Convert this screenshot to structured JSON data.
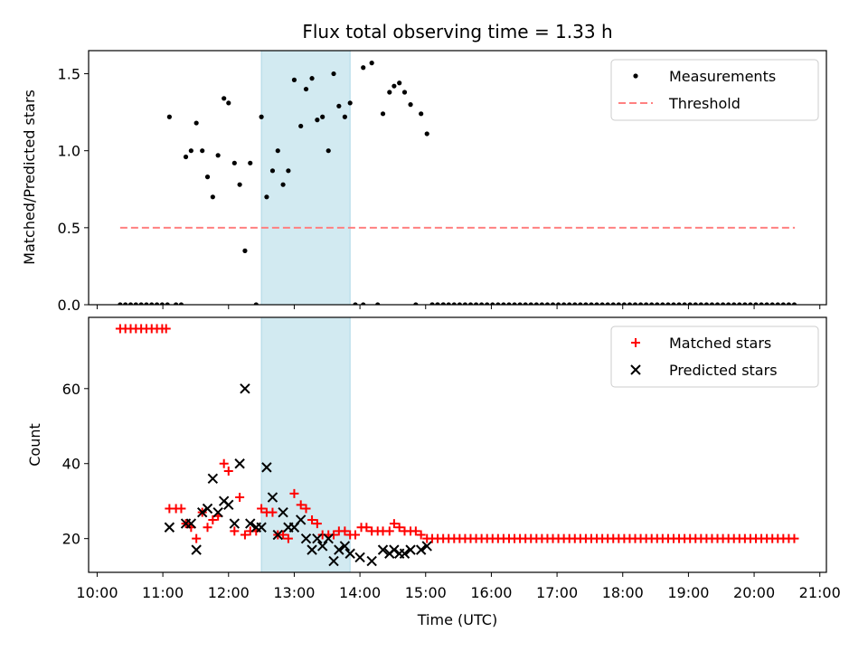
{
  "chart_data": [
    {
      "type": "scatter",
      "title": "Flux total observing time = 1.33 h",
      "xlabel": "",
      "ylabel": "Matched/Predicted stars",
      "ylim": [
        0,
        1.65
      ],
      "yticks": [
        "0.0",
        "0.5",
        "1.0",
        "1.5"
      ],
      "shaded_interval": {
        "start": 12.5,
        "end": 13.85,
        "color": "#add8e6"
      },
      "legend": {
        "position": "upper right",
        "entries": [
          "Measurements",
          "Threshold"
        ]
      },
      "series": [
        {
          "name": "Measurements",
          "color": "#000000",
          "points": [
            [
              10.35,
              0
            ],
            [
              10.43,
              0
            ],
            [
              10.51,
              0
            ],
            [
              10.59,
              0
            ],
            [
              10.67,
              0
            ],
            [
              10.75,
              0
            ],
            [
              10.83,
              0
            ],
            [
              10.91,
              0
            ],
            [
              10.99,
              0
            ],
            [
              11.07,
              0
            ],
            [
              11.1,
              1.22
            ],
            [
              11.2,
              0
            ],
            [
              11.28,
              0
            ],
            [
              11.35,
              0.96
            ],
            [
              11.43,
              1.0
            ],
            [
              11.51,
              1.18
            ],
            [
              11.6,
              1.0
            ],
            [
              11.68,
              0.83
            ],
            [
              11.76,
              0.7
            ],
            [
              11.84,
              0.97
            ],
            [
              11.93,
              1.34
            ],
            [
              12.0,
              1.31
            ],
            [
              12.09,
              0.92
            ],
            [
              12.17,
              0.78
            ],
            [
              12.25,
              0.35
            ],
            [
              12.33,
              0.92
            ],
            [
              12.42,
              0
            ],
            [
              12.5,
              1.22
            ],
            [
              12.58,
              0.7
            ],
            [
              12.67,
              0.87
            ],
            [
              12.75,
              1.0
            ],
            [
              12.83,
              0.78
            ],
            [
              12.91,
              0.87
            ],
            [
              13.0,
              1.46
            ],
            [
              13.1,
              1.16
            ],
            [
              13.18,
              1.4
            ],
            [
              13.27,
              1.47
            ],
            [
              13.35,
              1.2
            ],
            [
              13.43,
              1.22
            ],
            [
              13.52,
              1.0
            ],
            [
              13.6,
              1.5
            ],
            [
              13.68,
              1.29
            ],
            [
              13.77,
              1.22
            ],
            [
              13.85,
              1.31
            ],
            [
              13.93,
              0
            ],
            [
              14.05,
              0
            ],
            [
              14.18,
              1.57
            ],
            [
              14.27,
              0
            ],
            [
              14.35,
              1.24
            ],
            [
              14.45,
              1.38
            ],
            [
              14.52,
              1.42
            ],
            [
              14.6,
              1.44
            ],
            [
              14.68,
              1.38
            ],
            [
              14.77,
              1.3
            ],
            [
              14.85,
              0
            ],
            [
              14.93,
              1.24
            ],
            [
              15.02,
              1.11
            ],
            [
              15.1,
              0
            ],
            [
              15.18,
              0
            ],
            [
              15.27,
              0
            ],
            [
              14.05,
              1.54
            ]
          ],
          "zero_run": {
            "start": 15.1,
            "end": 20.62,
            "step": 0.0835,
            "value": 0
          }
        },
        {
          "name": "Threshold",
          "color": "#ff8080",
          "x": [
            10.35,
            20.62
          ],
          "y": [
            0.5,
            0.5
          ]
        }
      ]
    },
    {
      "type": "scatter",
      "title": "",
      "xlabel": "Time (UTC)",
      "ylabel": "Count",
      "ylim": [
        11,
        79
      ],
      "yticks": [
        "20",
        "40",
        "60"
      ],
      "xticks": [
        "10:00",
        "11:00",
        "12:00",
        "13:00",
        "14:00",
        "15:00",
        "16:00",
        "17:00",
        "18:00",
        "19:00",
        "20:00",
        "21:00"
      ],
      "shaded_interval": {
        "start": 12.5,
        "end": 13.85,
        "color": "#add8e6"
      },
      "legend": {
        "position": "upper right",
        "entries": [
          "Matched stars",
          "Predicted stars"
        ]
      },
      "series": [
        {
          "name": "Matched stars",
          "color": "#ff0000",
          "marker": "+",
          "points": [
            [
              10.35,
              76
            ],
            [
              10.43,
              76
            ],
            [
              10.51,
              76
            ],
            [
              10.59,
              76
            ],
            [
              10.67,
              76
            ],
            [
              10.75,
              76
            ],
            [
              10.83,
              76
            ],
            [
              10.91,
              76
            ],
            [
              10.99,
              76
            ],
            [
              11.05,
              76
            ],
            [
              11.1,
              28
            ],
            [
              11.2,
              28
            ],
            [
              11.28,
              28
            ],
            [
              11.35,
              24
            ],
            [
              11.43,
              23
            ],
            [
              11.51,
              20
            ],
            [
              11.6,
              27
            ],
            [
              11.68,
              23
            ],
            [
              11.76,
              25
            ],
            [
              11.84,
              26
            ],
            [
              11.93,
              40
            ],
            [
              12.0,
              38
            ],
            [
              12.09,
              22
            ],
            [
              12.17,
              31
            ],
            [
              12.25,
              21
            ],
            [
              12.33,
              22
            ],
            [
              12.42,
              22
            ],
            [
              12.5,
              28
            ],
            [
              12.58,
              27
            ],
            [
              12.67,
              27
            ],
            [
              12.75,
              21
            ],
            [
              12.83,
              21
            ],
            [
              12.91,
              20
            ],
            [
              13.0,
              32
            ],
            [
              13.1,
              29
            ],
            [
              13.18,
              28
            ],
            [
              13.27,
              25
            ],
            [
              13.35,
              24
            ],
            [
              13.43,
              21
            ],
            [
              13.52,
              21
            ],
            [
              13.6,
              21
            ],
            [
              13.68,
              22
            ],
            [
              13.77,
              22
            ],
            [
              13.85,
              21
            ],
            [
              13.93,
              21
            ],
            [
              14.02,
              23
            ],
            [
              14.1,
              23
            ],
            [
              14.18,
              22
            ],
            [
              14.27,
              22
            ],
            [
              14.35,
              22
            ],
            [
              14.45,
              22
            ],
            [
              14.52,
              24
            ],
            [
              14.6,
              23
            ],
            [
              14.68,
              22
            ],
            [
              14.77,
              22
            ],
            [
              14.85,
              22
            ],
            [
              14.93,
              21
            ],
            [
              15.02,
              20
            ]
          ],
          "constant_run": {
            "start": 15.1,
            "end": 20.62,
            "step": 0.0835,
            "value": 20
          }
        },
        {
          "name": "Predicted stars",
          "color": "#000000",
          "marker": "x",
          "points": [
            [
              11.1,
              23
            ],
            [
              11.35,
              24
            ],
            [
              11.43,
              24
            ],
            [
              11.51,
              17
            ],
            [
              11.6,
              27
            ],
            [
              11.68,
              28
            ],
            [
              11.76,
              36
            ],
            [
              11.84,
              27
            ],
            [
              11.93,
              30
            ],
            [
              12.0,
              29
            ],
            [
              12.09,
              24
            ],
            [
              12.17,
              40
            ],
            [
              12.25,
              60
            ],
            [
              12.33,
              24
            ],
            [
              12.42,
              23
            ],
            [
              12.5,
              23
            ],
            [
              12.58,
              39
            ],
            [
              12.67,
              31
            ],
            [
              12.75,
              21
            ],
            [
              12.83,
              27
            ],
            [
              12.91,
              23
            ],
            [
              13.0,
              23
            ],
            [
              13.1,
              25
            ],
            [
              13.18,
              20
            ],
            [
              13.27,
              17
            ],
            [
              13.35,
              20
            ],
            [
              13.43,
              18
            ],
            [
              13.52,
              20
            ],
            [
              13.6,
              14
            ],
            [
              13.68,
              17
            ],
            [
              13.77,
              18
            ],
            [
              13.85,
              16
            ],
            [
              14.0,
              15
            ],
            [
              14.18,
              14
            ],
            [
              14.35,
              17
            ],
            [
              14.45,
              16
            ],
            [
              14.52,
              17
            ],
            [
              14.6,
              16
            ],
            [
              14.68,
              16
            ],
            [
              14.77,
              17
            ],
            [
              14.93,
              17
            ],
            [
              15.02,
              18
            ]
          ]
        }
      ]
    }
  ]
}
